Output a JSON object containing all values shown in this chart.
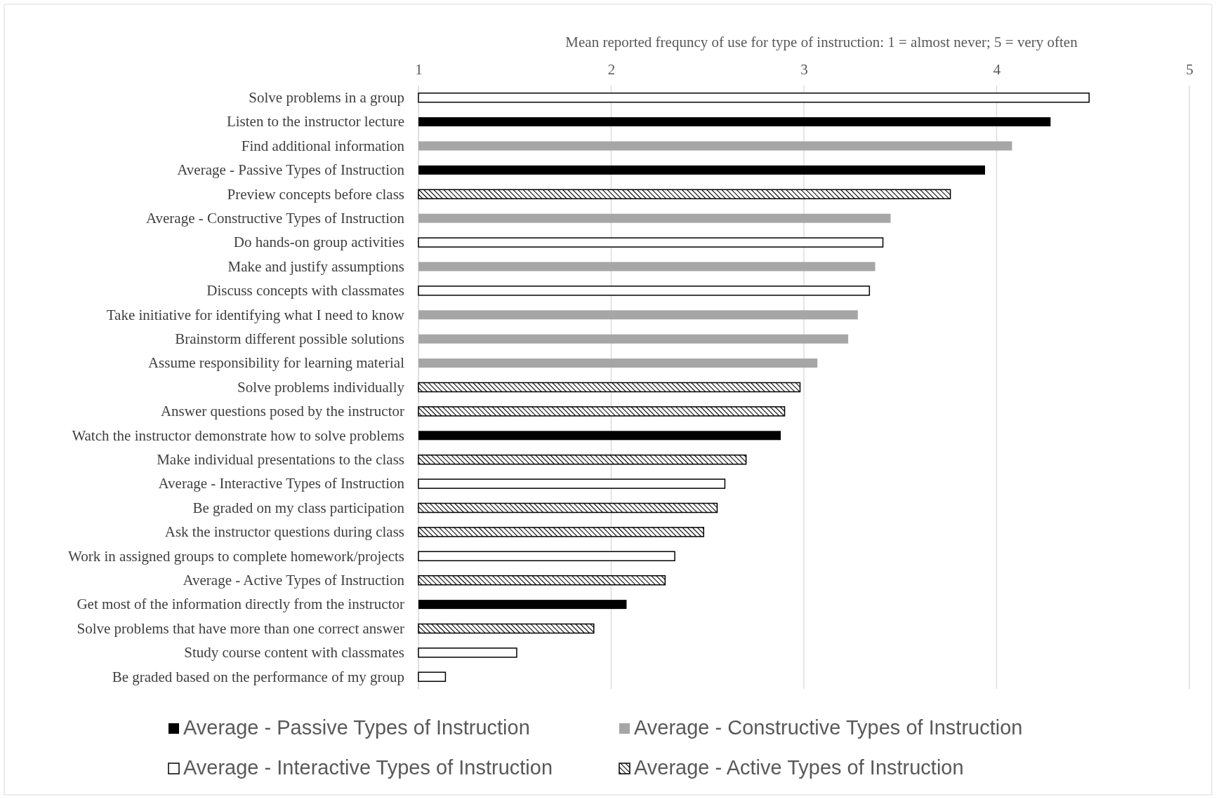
{
  "chart_data": {
    "type": "bar",
    "orientation": "horizontal",
    "xlabel": "Mean reported frequncy of use for type of instruction: 1 = almost never; 5 = very often",
    "categories": [
      "Solve problems in a group",
      "Listen to the instructor lecture",
      "Find additional information ",
      "Average - Passive Types of Instruction",
      "Preview concepts before class",
      "Average - Constructive Types of Instruction",
      "Do hands-on group activities",
      "Make and justify assumptions",
      "Discuss concepts with classmates",
      "Take initiative for identifying what I need to know",
      "Brainstorm different possible solutions",
      "Assume responsibility for learning material",
      "Solve problems individually",
      "Answer questions posed by the instructor",
      "Watch the instructor demonstrate how to solve problems",
      "Make individual presentations to the class",
      "Average - Interactive Types of Instruction",
      "Be graded on my class participation",
      "Ask the instructor questions during class",
      "Work in assigned groups to complete homework/projects",
      "Average - Active Types of Instruction",
      "Get most of the information directly from the instructor",
      "Solve problems that have more than one correct answer",
      "Study course content with classmates",
      "Be graded based on the performance of my group"
    ],
    "series": [
      {
        "name": "Average - Passive Types of Instruction",
        "color": "#000000",
        "values": [
          null,
          4.28,
          null,
          3.94,
          null,
          null,
          null,
          null,
          null,
          null,
          null,
          null,
          null,
          null,
          2.88,
          null,
          null,
          null,
          null,
          null,
          null,
          2.08,
          null,
          null,
          null
        ]
      },
      {
        "name": "Average - Constructive Types of Instruction",
        "color": "#a6a6a6",
        "values": [
          null,
          null,
          4.08,
          null,
          null,
          3.45,
          null,
          3.37,
          null,
          3.28,
          3.23,
          3.07,
          null,
          null,
          null,
          null,
          null,
          null,
          null,
          null,
          null,
          null,
          null,
          null,
          null
        ]
      },
      {
        "name": "Average - Interactive Types of Instruction",
        "color": "#ffffff",
        "values": [
          4.48,
          null,
          null,
          null,
          null,
          null,
          3.41,
          null,
          3.34,
          null,
          null,
          null,
          null,
          null,
          null,
          null,
          2.59,
          null,
          null,
          2.33,
          null,
          null,
          null,
          1.51,
          1.14
        ]
      },
      {
        "name": "Average - Active Types of Instruction",
        "color": "#000000",
        "values": [
          null,
          null,
          null,
          null,
          3.76,
          null,
          null,
          null,
          null,
          null,
          null,
          null,
          2.98,
          2.9,
          null,
          2.7,
          null,
          2.55,
          2.48,
          null,
          2.28,
          null,
          1.91,
          null,
          null
        ]
      }
    ],
    "xlim": [
      1,
      5
    ],
    "xticks": [
      1,
      2,
      3,
      4,
      5
    ],
    "grid": "x",
    "legend": "bottom"
  }
}
